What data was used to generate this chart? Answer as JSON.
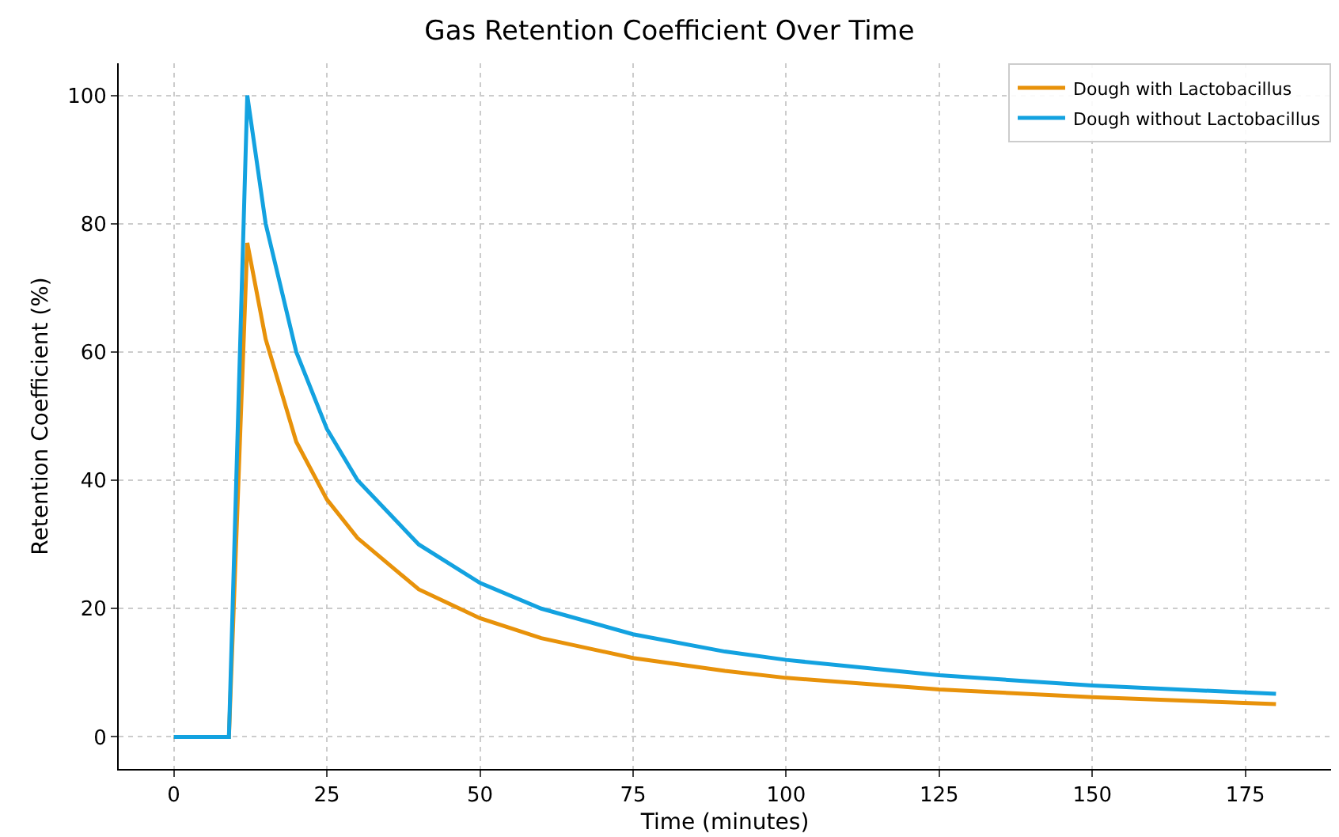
{
  "chart_data": {
    "type": "line",
    "title": "Gas Retention Coefficient Over Time",
    "xlabel": "Time (minutes)",
    "ylabel": "Retention Coefficient (%)",
    "x": [
      0,
      9,
      12,
      15,
      20,
      25,
      30,
      40,
      50,
      60,
      75,
      90,
      100,
      125,
      150,
      180
    ],
    "series": [
      {
        "name": "Dough with Lactobacillus",
        "color": "#e8920a",
        "values": [
          0,
          0,
          77,
          62,
          46,
          37,
          31,
          23,
          18.5,
          15.4,
          12.3,
          10.3,
          9.2,
          7.4,
          6.2,
          5.1
        ]
      },
      {
        "name": "Dough without Lactobacillus",
        "color": "#13a2e0",
        "values": [
          0,
          0,
          100,
          80,
          60,
          48,
          40,
          30,
          24,
          20,
          16,
          13.3,
          12,
          9.6,
          8,
          6.7
        ]
      }
    ],
    "xlim": [
      -9,
      189
    ],
    "ylim": [
      -5,
      105
    ],
    "xticks": [
      0,
      25,
      50,
      75,
      100,
      125,
      150,
      175
    ],
    "yticks": [
      0,
      20,
      40,
      60,
      80,
      100
    ],
    "grid": true,
    "legend": "top right",
    "line_style": "solid",
    "marker": "none"
  }
}
